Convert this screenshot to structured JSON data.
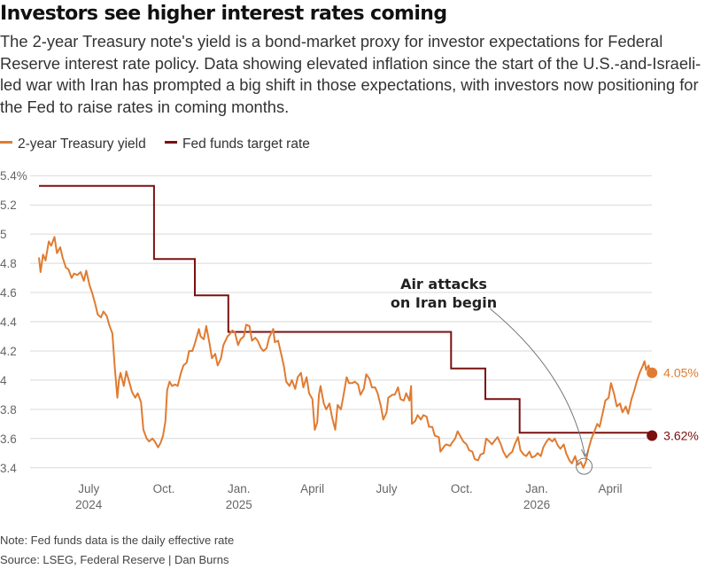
{
  "header": {
    "title": "Investors see higher interest rates coming",
    "subtitle": "The 2-year Treasury note's yield is a bond-market proxy for investor expectations for Federal Reserve interest rate policy. Data showing elevated inflation since the start of the U.S.-and-Israeli-led war with Iran has prompted a big shift in those expectations, with investors now positioning for the Fed to raise rates in coming months."
  },
  "footer": {
    "note": "Note: Fed funds data is the daily effective rate",
    "source": "Source: LSEG, Federal Reserve | Dan Burns"
  },
  "colors": {
    "treasury": "#e07b31",
    "fedfunds": "#7a1010",
    "grid": "#d9d9d9",
    "axis_text": "#666666"
  },
  "chart_data": {
    "type": "line",
    "x_type": "date",
    "xlim": [
      "2024-05-01",
      "2026-05-22"
    ],
    "ylim": [
      3.35,
      5.45
    ],
    "y_ticks": [
      {
        "value": 3.4,
        "label": "3.4"
      },
      {
        "value": 3.6,
        "label": "3.6"
      },
      {
        "value": 3.8,
        "label": "3.8"
      },
      {
        "value": 4.0,
        "label": "4"
      },
      {
        "value": 4.2,
        "label": "4.2"
      },
      {
        "value": 4.4,
        "label": "4.4"
      },
      {
        "value": 4.6,
        "label": "4.6"
      },
      {
        "value": 4.8,
        "label": "4.8"
      },
      {
        "value": 5.0,
        "label": "5"
      },
      {
        "value": 5.2,
        "label": "5.2"
      },
      {
        "value": 5.4,
        "label": "5.4%"
      }
    ],
    "x_ticks": [
      {
        "date": "2024-07-01",
        "label": "July",
        "sub": "2024"
      },
      {
        "date": "2024-10-01",
        "label": "Oct.",
        "sub": ""
      },
      {
        "date": "2025-01-01",
        "label": "Jan.",
        "sub": "2025"
      },
      {
        "date": "2025-04-01",
        "label": "April",
        "sub": ""
      },
      {
        "date": "2025-07-01",
        "label": "July",
        "sub": ""
      },
      {
        "date": "2025-10-01",
        "label": "Oct.",
        "sub": ""
      },
      {
        "date": "2026-01-01",
        "label": "Jan.",
        "sub": "2026"
      },
      {
        "date": "2026-04-01",
        "label": "April",
        "sub": ""
      }
    ],
    "grid": true,
    "legend_position": "top-left",
    "series": [
      {
        "name": "2-year Treasury yield",
        "color": "#e07b31",
        "end_label": "4.05%",
        "points": [
          [
            "2024-05-01",
            4.84
          ],
          [
            "2024-05-03",
            4.74
          ],
          [
            "2024-05-06",
            4.86
          ],
          [
            "2024-05-09",
            4.82
          ],
          [
            "2024-05-13",
            4.95
          ],
          [
            "2024-05-16",
            4.92
          ],
          [
            "2024-05-20",
            4.98
          ],
          [
            "2024-05-23",
            4.87
          ],
          [
            "2024-05-27",
            4.91
          ],
          [
            "2024-05-30",
            4.84
          ],
          [
            "2024-06-03",
            4.77
          ],
          [
            "2024-06-06",
            4.76
          ],
          [
            "2024-06-10",
            4.7
          ],
          [
            "2024-06-13",
            4.73
          ],
          [
            "2024-06-17",
            4.72
          ],
          [
            "2024-06-21",
            4.74
          ],
          [
            "2024-06-25",
            4.68
          ],
          [
            "2024-06-28",
            4.75
          ],
          [
            "2024-07-02",
            4.65
          ],
          [
            "2024-07-05",
            4.6
          ],
          [
            "2024-07-09",
            4.52
          ],
          [
            "2024-07-12",
            4.45
          ],
          [
            "2024-07-16",
            4.43
          ],
          [
            "2024-07-19",
            4.47
          ],
          [
            "2024-07-23",
            4.44
          ],
          [
            "2024-07-26",
            4.38
          ],
          [
            "2024-07-30",
            4.32
          ],
          [
            "2024-08-02",
            4.08
          ],
          [
            "2024-08-05",
            3.88
          ],
          [
            "2024-08-07",
            4.0
          ],
          [
            "2024-08-09",
            4.05
          ],
          [
            "2024-08-13",
            3.96
          ],
          [
            "2024-08-16",
            4.06
          ],
          [
            "2024-08-20",
            3.98
          ],
          [
            "2024-08-23",
            3.92
          ],
          [
            "2024-08-27",
            3.88
          ],
          [
            "2024-08-30",
            3.91
          ],
          [
            "2024-09-03",
            3.85
          ],
          [
            "2024-09-06",
            3.66
          ],
          [
            "2024-09-10",
            3.6
          ],
          [
            "2024-09-13",
            3.58
          ],
          [
            "2024-09-17",
            3.6
          ],
          [
            "2024-09-20",
            3.58
          ],
          [
            "2024-09-24",
            3.54
          ],
          [
            "2024-09-27",
            3.57
          ],
          [
            "2024-09-30",
            3.62
          ],
          [
            "2024-10-03",
            3.72
          ],
          [
            "2024-10-05",
            3.93
          ],
          [
            "2024-10-08",
            3.99
          ],
          [
            "2024-10-11",
            3.96
          ],
          [
            "2024-10-15",
            3.97
          ],
          [
            "2024-10-18",
            3.96
          ],
          [
            "2024-10-22",
            4.05
          ],
          [
            "2024-10-25",
            4.1
          ],
          [
            "2024-10-29",
            4.12
          ],
          [
            "2024-11-01",
            4.2
          ],
          [
            "2024-11-05",
            4.2
          ],
          [
            "2024-11-08",
            4.25
          ],
          [
            "2024-11-13",
            4.35
          ],
          [
            "2024-11-15",
            4.3
          ],
          [
            "2024-11-19",
            4.28
          ],
          [
            "2024-11-22",
            4.37
          ],
          [
            "2024-11-26",
            4.25
          ],
          [
            "2024-11-29",
            4.15
          ],
          [
            "2024-12-03",
            4.18
          ],
          [
            "2024-12-06",
            4.1
          ],
          [
            "2024-12-10",
            4.15
          ],
          [
            "2024-12-13",
            4.24
          ],
          [
            "2024-12-18",
            4.3
          ],
          [
            "2024-12-20",
            4.31
          ],
          [
            "2024-12-24",
            4.34
          ],
          [
            "2024-12-27",
            4.33
          ],
          [
            "2024-12-31",
            4.24
          ],
          [
            "2025-01-03",
            4.28
          ],
          [
            "2025-01-07",
            4.3
          ],
          [
            "2025-01-10",
            4.38
          ],
          [
            "2025-01-14",
            4.37
          ],
          [
            "2025-01-17",
            4.27
          ],
          [
            "2025-01-21",
            4.29
          ],
          [
            "2025-01-24",
            4.27
          ],
          [
            "2025-01-28",
            4.22
          ],
          [
            "2025-01-31",
            4.2
          ],
          [
            "2025-02-04",
            4.22
          ],
          [
            "2025-02-07",
            4.29
          ],
          [
            "2025-02-12",
            4.35
          ],
          [
            "2025-02-14",
            4.26
          ],
          [
            "2025-02-18",
            4.27
          ],
          [
            "2025-02-21",
            4.2
          ],
          [
            "2025-02-25",
            4.1
          ],
          [
            "2025-02-28",
            3.99
          ],
          [
            "2025-03-04",
            3.96
          ],
          [
            "2025-03-07",
            4.0
          ],
          [
            "2025-03-11",
            3.94
          ],
          [
            "2025-03-14",
            4.02
          ],
          [
            "2025-03-18",
            4.05
          ],
          [
            "2025-03-21",
            3.95
          ],
          [
            "2025-03-25",
            4.02
          ],
          [
            "2025-03-28",
            3.91
          ],
          [
            "2025-04-01",
            3.87
          ],
          [
            "2025-04-04",
            3.66
          ],
          [
            "2025-04-07",
            3.71
          ],
          [
            "2025-04-09",
            3.9
          ],
          [
            "2025-04-11",
            3.96
          ],
          [
            "2025-04-15",
            3.84
          ],
          [
            "2025-04-18",
            3.8
          ],
          [
            "2025-04-22",
            3.84
          ],
          [
            "2025-04-25",
            3.75
          ],
          [
            "2025-04-29",
            3.66
          ],
          [
            "2025-05-02",
            3.83
          ],
          [
            "2025-05-06",
            3.8
          ],
          [
            "2025-05-09",
            3.89
          ],
          [
            "2025-05-13",
            4.02
          ],
          [
            "2025-05-16",
            3.98
          ],
          [
            "2025-05-20",
            3.98
          ],
          [
            "2025-05-23",
            3.99
          ],
          [
            "2025-05-27",
            3.97
          ],
          [
            "2025-05-30",
            3.9
          ],
          [
            "2025-06-03",
            3.94
          ],
          [
            "2025-06-06",
            4.04
          ],
          [
            "2025-06-10",
            4.01
          ],
          [
            "2025-06-13",
            3.95
          ],
          [
            "2025-06-17",
            3.95
          ],
          [
            "2025-06-20",
            3.91
          ],
          [
            "2025-06-24",
            3.82
          ],
          [
            "2025-06-27",
            3.73
          ],
          [
            "2025-07-01",
            3.78
          ],
          [
            "2025-07-03",
            3.88
          ],
          [
            "2025-07-08",
            3.9
          ],
          [
            "2025-07-11",
            3.9
          ],
          [
            "2025-07-15",
            3.95
          ],
          [
            "2025-07-18",
            3.87
          ],
          [
            "2025-07-22",
            3.86
          ],
          [
            "2025-07-25",
            3.91
          ],
          [
            "2025-07-29",
            3.86
          ],
          [
            "2025-07-31",
            3.96
          ],
          [
            "2025-08-01",
            3.7
          ],
          [
            "2025-08-05",
            3.72
          ],
          [
            "2025-08-08",
            3.76
          ],
          [
            "2025-08-12",
            3.73
          ],
          [
            "2025-08-15",
            3.76
          ],
          [
            "2025-08-19",
            3.75
          ],
          [
            "2025-08-22",
            3.68
          ],
          [
            "2025-08-26",
            3.68
          ],
          [
            "2025-08-29",
            3.62
          ],
          [
            "2025-09-03",
            3.61
          ],
          [
            "2025-09-05",
            3.51
          ],
          [
            "2025-09-10",
            3.55
          ],
          [
            "2025-09-12",
            3.56
          ],
          [
            "2025-09-17",
            3.55
          ],
          [
            "2025-09-19",
            3.57
          ],
          [
            "2025-09-23",
            3.6
          ],
          [
            "2025-09-26",
            3.65
          ],
          [
            "2025-09-30",
            3.61
          ],
          [
            "2025-10-03",
            3.58
          ],
          [
            "2025-10-07",
            3.56
          ],
          [
            "2025-10-10",
            3.52
          ],
          [
            "2025-10-14",
            3.51
          ],
          [
            "2025-10-17",
            3.46
          ],
          [
            "2025-10-21",
            3.45
          ],
          [
            "2025-10-24",
            3.49
          ],
          [
            "2025-10-28",
            3.5
          ],
          [
            "2025-10-31",
            3.6
          ],
          [
            "2025-11-04",
            3.58
          ],
          [
            "2025-11-07",
            3.56
          ],
          [
            "2025-11-11",
            3.59
          ],
          [
            "2025-11-14",
            3.61
          ],
          [
            "2025-11-18",
            3.56
          ],
          [
            "2025-11-21",
            3.51
          ],
          [
            "2025-11-25",
            3.47
          ],
          [
            "2025-11-28",
            3.49
          ],
          [
            "2025-12-02",
            3.51
          ],
          [
            "2025-12-05",
            3.56
          ],
          [
            "2025-12-09",
            3.61
          ],
          [
            "2025-12-12",
            3.52
          ],
          [
            "2025-12-16",
            3.49
          ],
          [
            "2025-12-19",
            3.48
          ],
          [
            "2025-12-23",
            3.51
          ],
          [
            "2025-12-26",
            3.47
          ],
          [
            "2025-12-30",
            3.48
          ],
          [
            "2026-01-02",
            3.5
          ],
          [
            "2026-01-06",
            3.48
          ],
          [
            "2026-01-09",
            3.54
          ],
          [
            "2026-01-13",
            3.58
          ],
          [
            "2026-01-16",
            3.6
          ],
          [
            "2026-01-20",
            3.58
          ],
          [
            "2026-01-23",
            3.6
          ],
          [
            "2026-01-27",
            3.55
          ],
          [
            "2026-01-30",
            3.53
          ],
          [
            "2026-02-03",
            3.56
          ],
          [
            "2026-02-06",
            3.5
          ],
          [
            "2026-02-10",
            3.45
          ],
          [
            "2026-02-13",
            3.43
          ],
          [
            "2026-02-17",
            3.48
          ],
          [
            "2026-02-20",
            3.42
          ],
          [
            "2026-02-24",
            3.44
          ],
          [
            "2026-02-27",
            3.4
          ],
          [
            "2026-03-02",
            3.44
          ],
          [
            "2026-03-05",
            3.52
          ],
          [
            "2026-03-09",
            3.6
          ],
          [
            "2026-03-12",
            3.64
          ],
          [
            "2026-03-16",
            3.7
          ],
          [
            "2026-03-19",
            3.68
          ],
          [
            "2026-03-23",
            3.78
          ],
          [
            "2026-03-26",
            3.86
          ],
          [
            "2026-03-30",
            3.88
          ],
          [
            "2026-04-02",
            3.98
          ],
          [
            "2026-04-06",
            3.9
          ],
          [
            "2026-04-09",
            3.82
          ],
          [
            "2026-04-13",
            3.84
          ],
          [
            "2026-04-16",
            3.78
          ],
          [
            "2026-04-20",
            3.82
          ],
          [
            "2026-04-23",
            3.77
          ],
          [
            "2026-04-27",
            3.87
          ],
          [
            "2026-04-30",
            3.92
          ],
          [
            "2026-05-04",
            4.0
          ],
          [
            "2026-05-07",
            4.05
          ],
          [
            "2026-05-11",
            4.1
          ],
          [
            "2026-05-13",
            4.13
          ],
          [
            "2026-05-15",
            4.07
          ],
          [
            "2026-05-18",
            4.1
          ],
          [
            "2026-05-20",
            4.05
          ]
        ]
      },
      {
        "name": "Fed funds target rate",
        "color": "#7a1010",
        "end_label": "3.62%",
        "step": true,
        "points": [
          [
            "2024-05-01",
            5.33
          ],
          [
            "2024-09-19",
            4.83
          ],
          [
            "2024-11-08",
            4.58
          ],
          [
            "2024-12-19",
            4.33
          ],
          [
            "2025-09-18",
            4.08
          ],
          [
            "2025-10-30",
            3.87
          ],
          [
            "2025-12-11",
            3.64
          ],
          [
            "2026-05-20",
            3.62
          ]
        ]
      }
    ],
    "annotations": [
      {
        "text_lines": [
          "Air attacks",
          "on Iran begin"
        ],
        "date": "2026-02-28",
        "value": 3.41
      }
    ]
  }
}
